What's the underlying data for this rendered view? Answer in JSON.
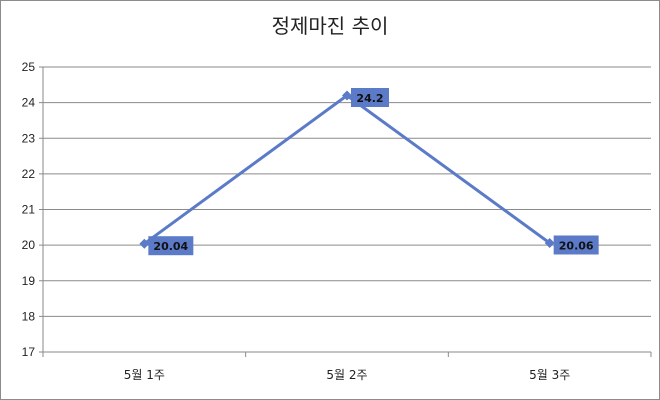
{
  "chart_data": {
    "type": "line",
    "title": "정제마진 추이",
    "categories": [
      "5월 1주",
      "5월 2주",
      "5월 3주"
    ],
    "series": [
      {
        "values": [
          20.04,
          24.2,
          20.06
        ],
        "data_labels": [
          "20.04",
          "24.2",
          "20.06"
        ]
      }
    ],
    "ylim": [
      17,
      25
    ],
    "y_ticks": [
      17,
      18,
      19,
      20,
      21,
      22,
      23,
      24,
      25
    ],
    "grid": true,
    "legend": "none",
    "colors": {
      "line": "#5b7bc8",
      "label_box": "#5b7bc8",
      "grid": "#8a8a8a"
    }
  }
}
